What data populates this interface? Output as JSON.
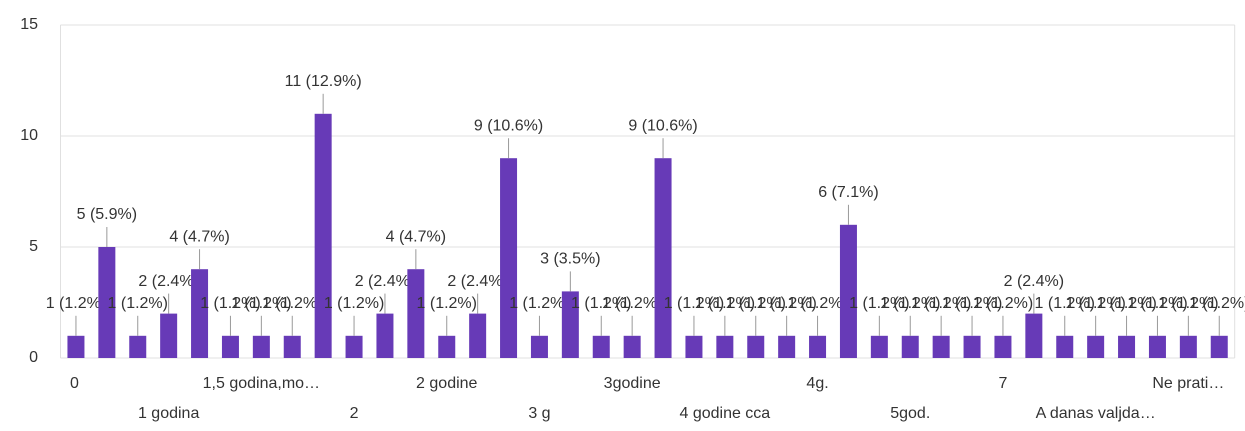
{
  "chart_data": {
    "type": "bar",
    "categories": [
      "0",
      null,
      null,
      "1 godina",
      null,
      null,
      "1,5 godina,mo…",
      null,
      null,
      "2",
      null,
      null,
      "2 godine",
      null,
      null,
      "3 g",
      null,
      null,
      "3godine",
      null,
      null,
      "4 godine cca",
      null,
      null,
      "4g.",
      null,
      null,
      "5god.",
      null,
      null,
      "7",
      null,
      null,
      "A danas valjda…",
      null,
      null,
      "Ne prati…",
      null
    ],
    "values": [
      1,
      5,
      1,
      2,
      4,
      1,
      1,
      1,
      11,
      1,
      2,
      4,
      1,
      2,
      9,
      1,
      3,
      1,
      1,
      9,
      1,
      1,
      1,
      1,
      1,
      6,
      1,
      1,
      1,
      1,
      1,
      2,
      1,
      1,
      1,
      1,
      1,
      1
    ],
    "value_labels": [
      "1 (1.2%)",
      "5 (5.9%)",
      "1 (1.2%)",
      "2 (2.4%)",
      "4 (4.7%)",
      "1 (1.2%)",
      "1 (1.2%)",
      "1 (1.2%)",
      "11 (12.9%)",
      "1 (1.2%)",
      "2 (2.4%)",
      "4 (4.7%)",
      "1 (1.2%)",
      "2 (2.4%)",
      "9 (10.6%)",
      "1 (1.2%)",
      "3 (3.5%)",
      "1 (1.2%)",
      "1 (1.2%)",
      "9 (10.6%)",
      "1 (1.2%)",
      "1 (1.2%)",
      "1 (1.2%)",
      "1 (1.2%)",
      "1 (1.2%)",
      "6 (7.1%)",
      "1 (1.2%)",
      "1 (1.2%)",
      "1 (1.2%)",
      "1 (1.2%)",
      "1 (1.2%)",
      "2 (2.4%)",
      "1 (1.2%)",
      "1 (1.2%)",
      "1 (1.2%)",
      "1 (1.2%)",
      "1 (1.2%)",
      "1 (1.2%)"
    ],
    "color": "#673ab7",
    "ylim": [
      0,
      15
    ],
    "yticks": [
      0,
      5,
      10,
      15
    ],
    "grid": true
  }
}
